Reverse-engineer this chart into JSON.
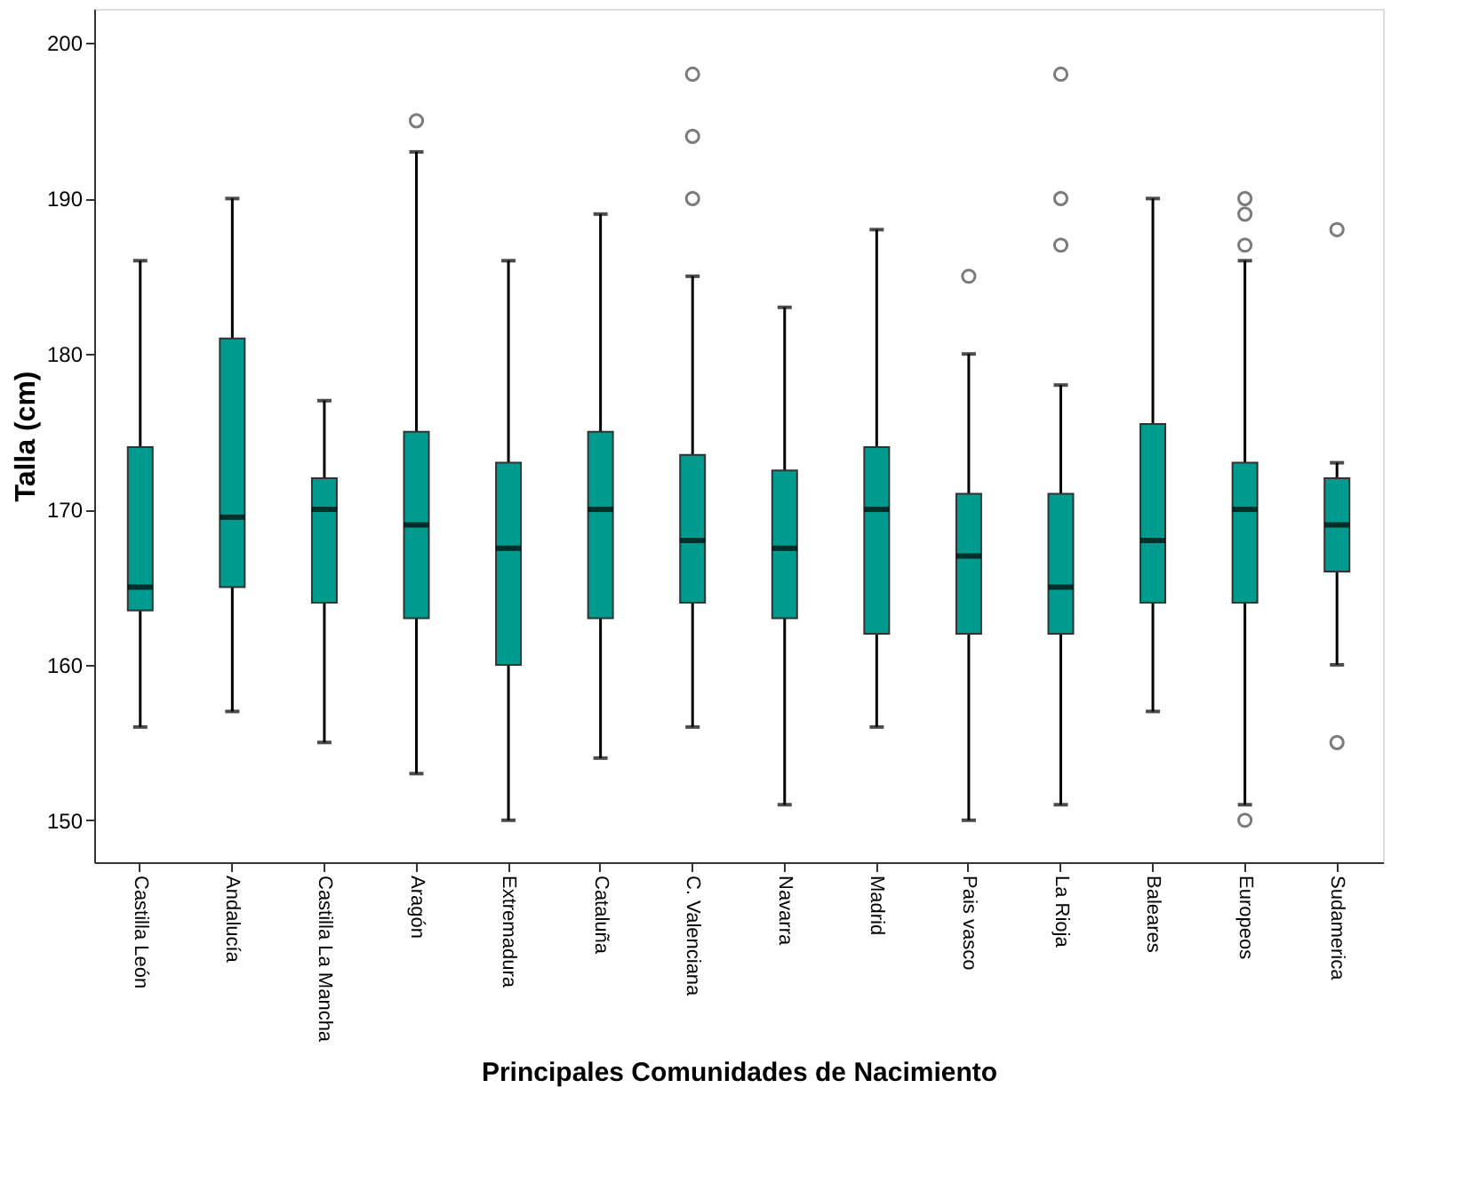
{
  "chart_data": {
    "type": "box",
    "xlabel": "Principales Comunidades de Nacimiento",
    "ylabel": "Talla (cm)",
    "color": "#009b8f",
    "grid": false,
    "categories": [
      "Castilla León",
      "Andalucía",
      "Castilla La Mancha",
      "Aragón",
      "Extremadura",
      "Cataluña",
      "C. Valenciana",
      "Navarra",
      "Madrid",
      "Pais vasco",
      "La Rioja",
      "Baleares",
      "Europeos",
      "Sudamerica"
    ],
    "ylim": [
      147.3,
      202.2
    ],
    "yticks": [
      150,
      160,
      170,
      180,
      190,
      200
    ],
    "boxes": [
      {
        "low": 156,
        "q1": 163.5,
        "median": 165,
        "q3": 174,
        "high": 186
      },
      {
        "low": 157,
        "q1": 165,
        "median": 169.5,
        "q3": 181,
        "high": 190
      },
      {
        "low": 155,
        "q1": 164,
        "median": 170,
        "q3": 172,
        "high": 177
      },
      {
        "low": 153,
        "q1": 163,
        "median": 169,
        "q3": 175,
        "high": 193,
        "outliers": [
          195
        ]
      },
      {
        "low": 150,
        "q1": 160,
        "median": 167.5,
        "q3": 173,
        "high": 186
      },
      {
        "low": 154,
        "q1": 163,
        "median": 170,
        "q3": 175,
        "high": 189
      },
      {
        "low": 156,
        "q1": 164,
        "median": 168,
        "q3": 173.5,
        "high": 185,
        "outliers": [
          190,
          194,
          198
        ]
      },
      {
        "low": 151,
        "q1": 163,
        "median": 167.5,
        "q3": 172.5,
        "high": 183
      },
      {
        "low": 156,
        "q1": 162,
        "median": 170,
        "q3": 174,
        "high": 188
      },
      {
        "low": 150,
        "q1": 162,
        "median": 167,
        "q3": 171,
        "high": 180,
        "outliers": [
          185
        ]
      },
      {
        "low": 151,
        "q1": 162,
        "median": 165,
        "q3": 171,
        "high": 178,
        "outliers": [
          187,
          190,
          198
        ]
      },
      {
        "low": 157,
        "q1": 164,
        "median": 168,
        "q3": 175.5,
        "high": 190
      },
      {
        "low": 151,
        "q1": 164,
        "median": 170,
        "q3": 173,
        "high": 186,
        "outliers": [
          150,
          187,
          189,
          190
        ]
      },
      {
        "low": 160,
        "q1": 166,
        "median": 169,
        "q3": 172,
        "high": 173,
        "outliers": [
          155,
          188
        ]
      }
    ]
  }
}
